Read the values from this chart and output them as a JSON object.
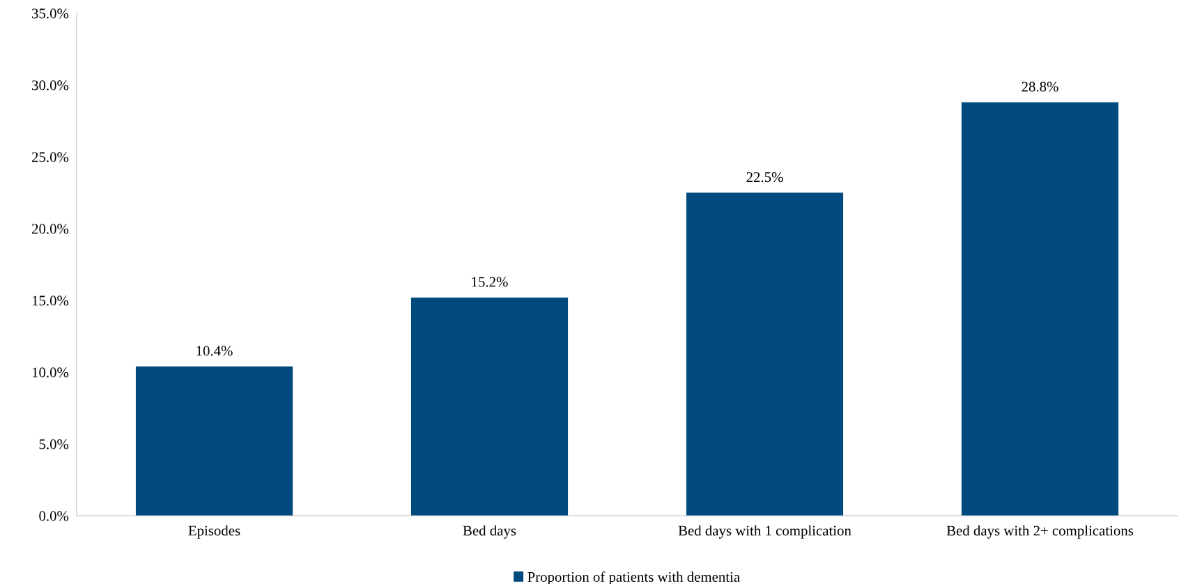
{
  "chart_data": {
    "type": "bar",
    "categories": [
      "Episodes",
      "Bed days",
      "Bed days with 1 complication",
      "Bed days with 2+ complications"
    ],
    "series": [
      {
        "name": "Proportion of patients with dementia",
        "color": "#004a7f",
        "values": [
          10.4,
          15.2,
          22.5,
          28.8
        ],
        "value_labels": [
          "10.4%",
          "15.2%",
          "22.5%",
          "28.8%"
        ]
      }
    ],
    "ylim": [
      0,
      35
    ],
    "yticks": [
      {
        "value": 0,
        "label": "0.0%"
      },
      {
        "value": 5,
        "label": "5.0%"
      },
      {
        "value": 10,
        "label": "10.0%"
      },
      {
        "value": 15,
        "label": "15.0%"
      },
      {
        "value": 20,
        "label": "20.0%"
      },
      {
        "value": 25,
        "label": "25.0%"
      },
      {
        "value": 30,
        "label": "30.0%"
      },
      {
        "value": 35,
        "label": "35.0%"
      }
    ],
    "grid": false,
    "legend": "bottom"
  }
}
